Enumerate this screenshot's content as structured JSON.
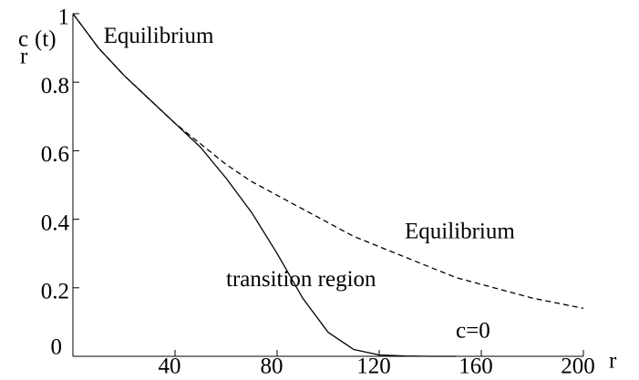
{
  "chart_data": {
    "type": "line",
    "x": [
      0,
      10,
      20,
      30,
      40,
      50,
      60,
      70,
      80,
      90,
      100,
      110,
      120,
      130,
      140,
      150,
      160,
      170,
      180,
      190,
      200
    ],
    "series": [
      {
        "name": "equilibrium",
        "color": "#000000",
        "dash": true,
        "values": [
          1,
          0.9,
          0.82,
          0.75,
          0.68,
          0.62,
          0.56,
          0.51,
          0.47,
          0.43,
          0.39,
          0.35,
          0.32,
          0.29,
          0.26,
          0.23,
          0.21,
          0.19,
          0.17,
          0.155,
          0.14
        ]
      },
      {
        "name": "transition",
        "color": "#000000",
        "dash": false,
        "values": [
          1,
          0.9,
          0.82,
          0.75,
          0.68,
          0.61,
          0.52,
          0.42,
          0.3,
          0.17,
          0.07,
          0.02,
          0.004,
          0.001,
          0,
          0,
          null,
          null,
          null,
          null,
          null
        ]
      }
    ],
    "xlabel": "r",
    "ylabel": "c",
    "ylabel_sub": "r",
    "ylabel_suffix": "(t)",
    "xlim": [
      0,
      200
    ],
    "ylim": [
      0,
      1
    ],
    "xticks": [
      0,
      40,
      80,
      120,
      160,
      200
    ],
    "yticks": [
      0,
      0.2,
      0.4,
      0.6,
      0.8,
      1
    ],
    "annotations": [
      {
        "text": "Equilibrium",
        "x": 12,
        "y": 0.93
      },
      {
        "text": "Equilibrium",
        "x": 130,
        "y": 0.36
      },
      {
        "text": "transition region",
        "x": 60,
        "y": 0.22
      },
      {
        "text": "c=0",
        "x": 150,
        "y": 0.07
      }
    ]
  }
}
